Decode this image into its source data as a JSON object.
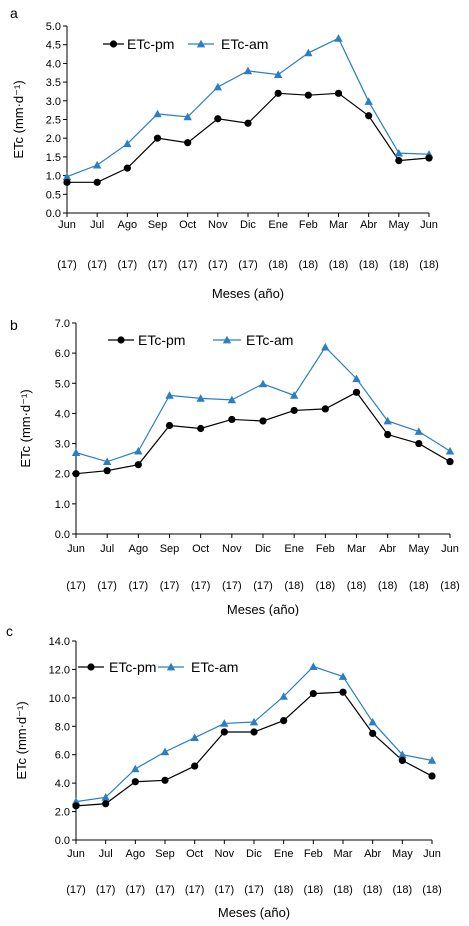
{
  "figure": {
    "xlabel": "Meses (año)",
    "ylabel": "ETc (mm·d⁻¹)"
  },
  "colors": {
    "pm": "#000000",
    "am": "#2a7fc4"
  },
  "chart_data": [
    {
      "panel": "a",
      "type": "line",
      "categories": [
        "Jun",
        "Jul",
        "Ago",
        "Sep",
        "Oct",
        "Nov",
        "Dic",
        "Ene",
        "Feb",
        "Mar",
        "Abr",
        "May",
        "Jun"
      ],
      "years": [
        "(17)",
        "(17)",
        "(17)",
        "(17)",
        "(17)",
        "(17)",
        "(17)",
        "(18)",
        "(18)",
        "(18)",
        "(18)",
        "(18)",
        "(18)"
      ],
      "ylim": [
        0,
        5.0
      ],
      "yticks": [
        "0.0",
        "0.5",
        "1.0",
        "1.5",
        "2.0",
        "2.5",
        "3.0",
        "3.5",
        "4.0",
        "4.5",
        "5.0"
      ],
      "ylabel": "ETc (mm·d⁻¹)",
      "xlabel": "Meses (año)",
      "legend_position": "top-left",
      "series": [
        {
          "name": "ETc-pm",
          "marker": "circle",
          "values": [
            0.82,
            0.82,
            1.2,
            2.0,
            1.88,
            2.52,
            2.4,
            3.2,
            3.15,
            3.2,
            2.6,
            1.4,
            1.47
          ]
        },
        {
          "name": "ETc-am",
          "marker": "triangle",
          "values": [
            0.97,
            1.28,
            1.85,
            2.65,
            2.57,
            3.37,
            3.8,
            3.7,
            4.28,
            4.67,
            2.98,
            1.6,
            1.57
          ]
        }
      ]
    },
    {
      "panel": "b",
      "type": "line",
      "categories": [
        "Jun",
        "Jul",
        "Ago",
        "Sep",
        "Oct",
        "Nov",
        "Dic",
        "Ene",
        "Feb",
        "Mar",
        "Abr",
        "May",
        "Jun"
      ],
      "years": [
        "(17)",
        "(17)",
        "(17)",
        "(17)",
        "(17)",
        "(17)",
        "(17)",
        "(18)",
        "(18)",
        "(18)",
        "(18)",
        "(18)",
        "(18)"
      ],
      "ylim": [
        0,
        7.0
      ],
      "yticks": [
        "0.0",
        "1.0",
        "2.0",
        "3.0",
        "4.0",
        "5.0",
        "6.0",
        "7.0"
      ],
      "ylabel": "ETc (mm·d⁻¹)",
      "xlabel": "Meses (año)",
      "legend_position": "top-left",
      "series": [
        {
          "name": "ETc-pm",
          "marker": "circle",
          "values": [
            2.0,
            2.1,
            2.3,
            3.6,
            3.5,
            3.8,
            3.75,
            4.1,
            4.15,
            4.7,
            3.3,
            3.0,
            2.4
          ]
        },
        {
          "name": "ETc-am",
          "marker": "triangle",
          "values": [
            2.7,
            2.4,
            2.75,
            4.6,
            4.5,
            4.45,
            4.98,
            4.6,
            6.2,
            5.15,
            3.75,
            3.4,
            2.75
          ]
        }
      ]
    },
    {
      "panel": "c",
      "type": "line",
      "categories": [
        "Jun",
        "Jul",
        "Ago",
        "Sep",
        "Oct",
        "Nov",
        "Dic",
        "Ene",
        "Feb",
        "Mar",
        "Abr",
        "May",
        "Jun"
      ],
      "years": [
        "(17)",
        "(17)",
        "(17)",
        "(17)",
        "(17)",
        "(17)",
        "(17)",
        "(18)",
        "(18)",
        "(18)",
        "(18)",
        "(18)",
        "(18)"
      ],
      "ylim": [
        0,
        14.0
      ],
      "yticks": [
        "0.0",
        "2.0",
        "4.0",
        "6.0",
        "8.0",
        "10.0",
        "12.0",
        "14.0"
      ],
      "ylabel": "ETc (mm·d⁻¹)",
      "xlabel": "Meses (año)",
      "legend_position": "top-left",
      "series": [
        {
          "name": "ETc-pm",
          "marker": "circle",
          "values": [
            2.4,
            2.55,
            4.1,
            4.2,
            5.2,
            7.6,
            7.6,
            8.4,
            10.3,
            10.4,
            7.5,
            5.6,
            4.5
          ]
        },
        {
          "name": "ETc-am",
          "marker": "triangle",
          "values": [
            2.7,
            3.0,
            5.0,
            6.2,
            7.2,
            8.2,
            8.3,
            10.1,
            12.2,
            11.5,
            8.3,
            6.0,
            5.6
          ]
        }
      ]
    }
  ]
}
